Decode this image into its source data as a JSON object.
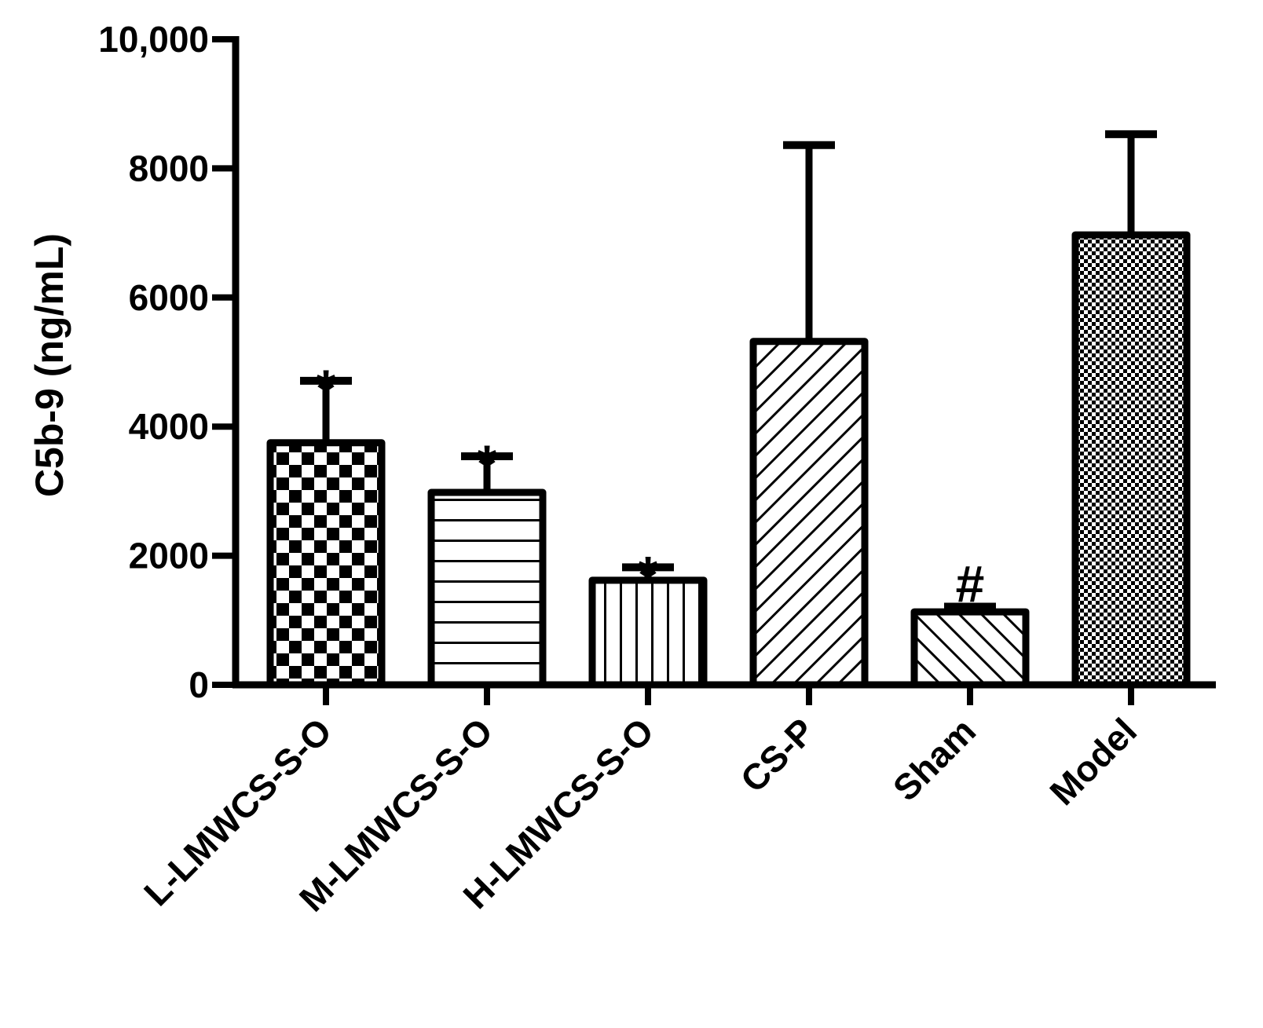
{
  "chart_data": {
    "type": "bar",
    "ylabel": "C5b-9 (ng/mL)",
    "xlabel": "",
    "ylim": [
      0,
      10000
    ],
    "yticks": [
      0,
      2000,
      4000,
      6000,
      8000,
      10000
    ],
    "ytick_labels": [
      "0",
      "2000",
      "4000",
      "6000",
      "8000",
      "10,000"
    ],
    "categories": [
      "L-LMWCS-S-O",
      "M-LMWCS-S-O",
      "H-LMWCS-S-O",
      "CS-P",
      "Sham",
      "Model"
    ],
    "values": [
      3750,
      2980,
      1620,
      5320,
      1130,
      6970
    ],
    "errors": [
      960,
      560,
      200,
      3040,
      80,
      1560
    ],
    "significance": [
      "*",
      "*",
      "*",
      "",
      "#",
      ""
    ],
    "patterns": [
      "checker",
      "horizontal",
      "vertical",
      "diagonal-right",
      "diagonal-left",
      "fine-checker"
    ],
    "grid": false,
    "colors": {
      "stroke": "#000000",
      "fill": "#ffffff"
    }
  }
}
